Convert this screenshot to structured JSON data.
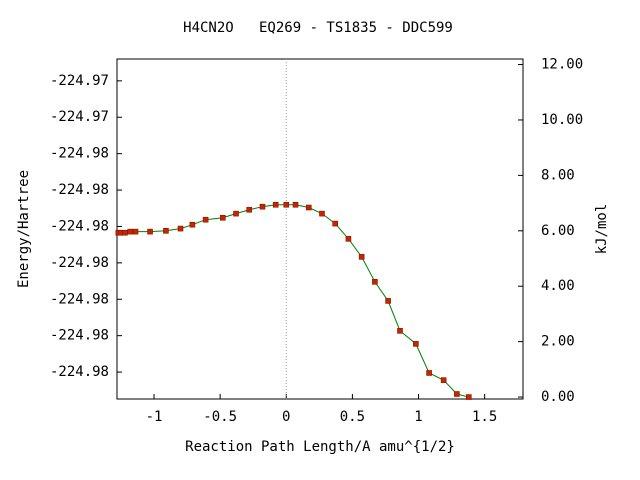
{
  "chart_data": {
    "type": "line",
    "title": "H4CN2O   EQ269 - TS1835 - DDC599",
    "x_label": "Reaction Path Length/A amu^{1/2}",
    "y_label": "Energy/Hartree",
    "y2_label": "kJ/mol",
    "xlim": [
      -1.28,
      1.79
    ],
    "xticks": [
      -1,
      -0.5,
      0,
      0.5,
      1,
      1.5
    ],
    "ylim": [
      -224.97837,
      -224.9737
    ],
    "yticks": [
      {
        "value": -224.974,
        "label": "-224.97"
      },
      {
        "value": -224.9745,
        "label": "-224.97"
      },
      {
        "value": -224.975,
        "label": "-224.98"
      },
      {
        "value": -224.9755,
        "label": "-224.98"
      },
      {
        "value": -224.976,
        "label": "-224.98"
      },
      {
        "value": -224.9765,
        "label": "-224.98"
      },
      {
        "value": -224.977,
        "label": "-224.98"
      },
      {
        "value": -224.9775,
        "label": "-224.98"
      },
      {
        "value": -224.978,
        "label": "-224.98"
      }
    ],
    "y2lim": [
      -0.07,
      12.2
    ],
    "y2ticks": [
      {
        "value": 0,
        "label": "0.00"
      },
      {
        "value": 2,
        "label": "2.00"
      },
      {
        "value": 4,
        "label": "4.00"
      },
      {
        "value": 6,
        "label": "6.00"
      },
      {
        "value": 8,
        "label": "8.00"
      },
      {
        "value": 10,
        "label": "10.00"
      },
      {
        "value": 12,
        "label": "12.00"
      }
    ],
    "ts_line_x": 0,
    "series": [
      {
        "axis": "y2",
        "color": "#008000",
        "marker_color": "#cc2200",
        "x": [
          -1.27,
          -1.25,
          -1.22,
          -1.18,
          -1.14,
          -1.03,
          -0.91,
          -0.8,
          -0.71,
          -0.61,
          -0.48,
          -0.38,
          -0.28,
          -0.18,
          -0.08,
          0.0,
          0.07,
          0.17,
          0.27,
          0.37,
          0.47,
          0.57,
          0.67,
          0.77,
          0.86,
          0.98,
          1.08,
          1.19,
          1.29,
          1.38
        ],
        "values": [
          5.93,
          5.93,
          5.93,
          5.97,
          5.97,
          5.97,
          6.0,
          6.08,
          6.22,
          6.4,
          6.47,
          6.62,
          6.76,
          6.87,
          6.94,
          6.94,
          6.94,
          6.84,
          6.62,
          6.26,
          5.71,
          5.06,
          4.16,
          3.47,
          2.39,
          1.92,
          0.87,
          0.61,
          0.11,
          0.0
        ]
      }
    ]
  }
}
